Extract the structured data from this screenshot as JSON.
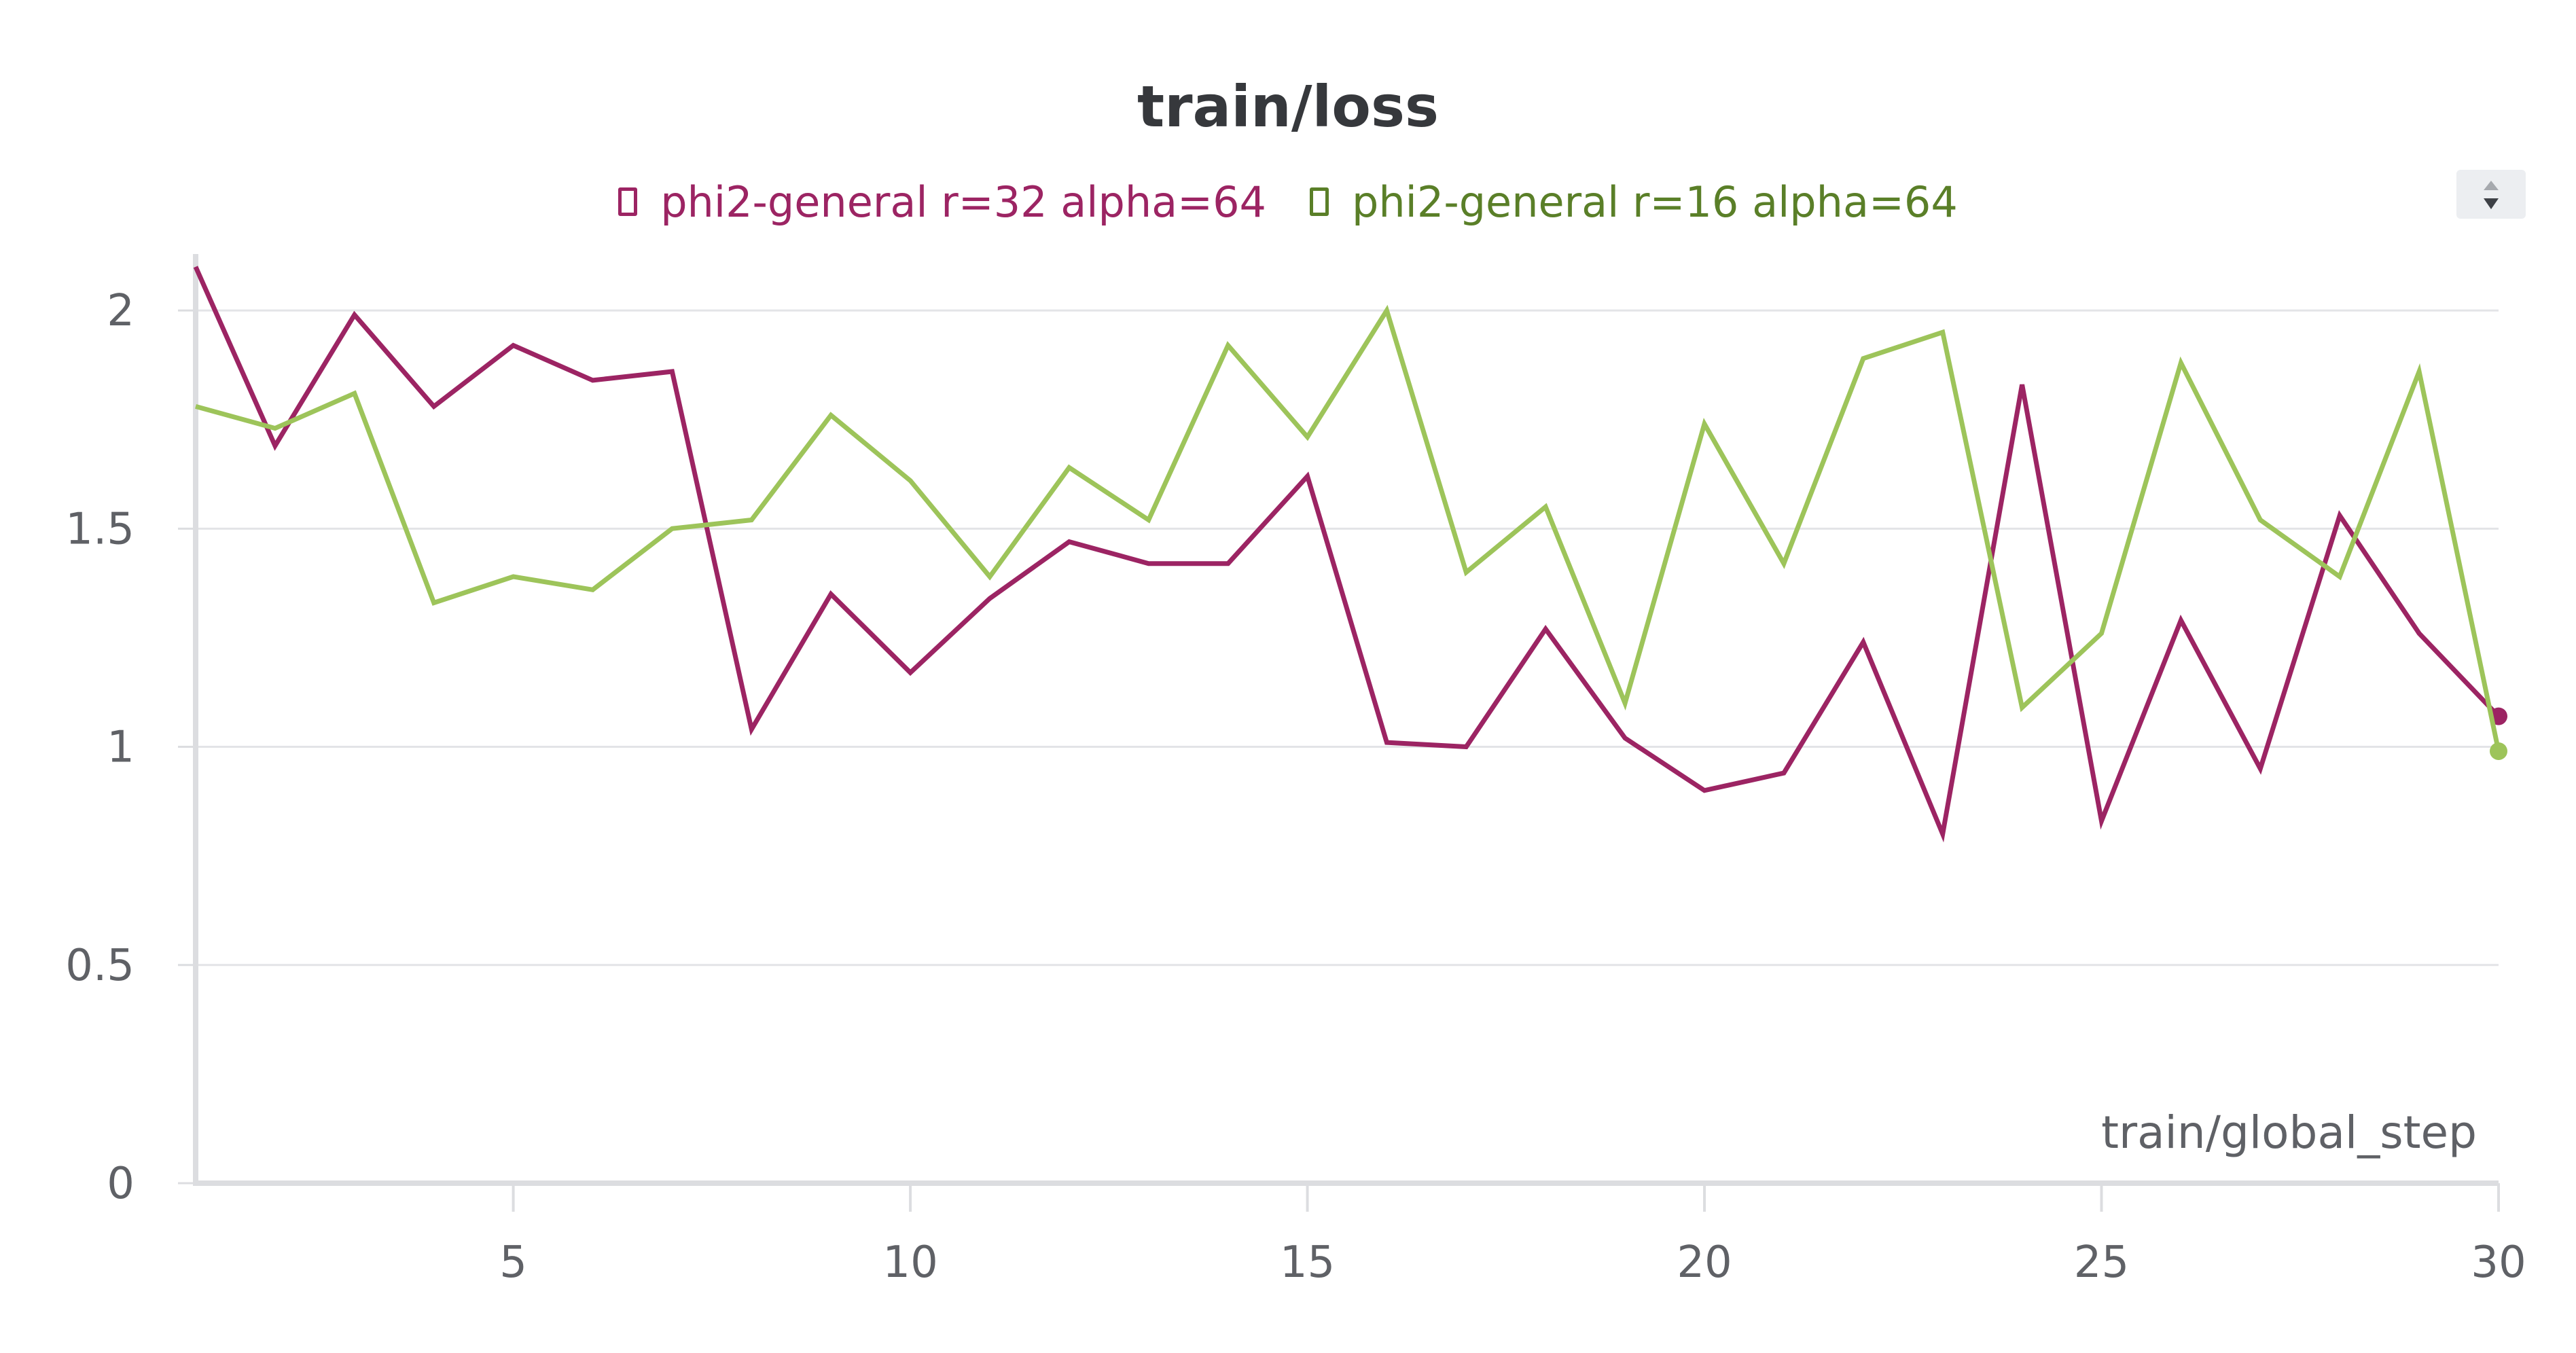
{
  "chart_data": {
    "type": "line",
    "title": "train/loss",
    "xlabel": "train/global_step",
    "ylabel": "",
    "xlim": [
      1,
      30
    ],
    "ylim": [
      0,
      2.12
    ],
    "xticks": [
      5,
      10,
      15,
      20,
      25,
      30
    ],
    "yticks": [
      0,
      0.5,
      1,
      1.5,
      2
    ],
    "ytick_labels": [
      "0",
      "0.5",
      "1",
      "1.5",
      "2"
    ],
    "grid": true,
    "legend_position": "top-center",
    "x": [
      1,
      2,
      3,
      4,
      5,
      6,
      7,
      8,
      9,
      10,
      11,
      12,
      13,
      14,
      15,
      16,
      17,
      18,
      19,
      20,
      21,
      22,
      23,
      24,
      25,
      26,
      27,
      28,
      29,
      30
    ],
    "series": [
      {
        "name": "phi2-general r=32 alpha=64",
        "color": "#9c2463",
        "values": [
          2.1,
          1.69,
          1.99,
          1.78,
          1.92,
          1.84,
          1.86,
          1.04,
          1.35,
          1.17,
          1.34,
          1.47,
          1.42,
          1.42,
          1.62,
          1.01,
          1.0,
          1.27,
          1.02,
          0.9,
          0.94,
          1.24,
          0.8,
          1.83,
          0.83,
          1.29,
          0.95,
          1.53,
          1.26,
          1.07
        ]
      },
      {
        "name": "phi2-general r=16 alpha=64",
        "color": "#9dc45a",
        "legend_text_color": "#5a7f28",
        "values": [
          1.78,
          1.73,
          1.81,
          1.33,
          1.39,
          1.36,
          1.5,
          1.52,
          1.76,
          1.61,
          1.39,
          1.64,
          1.52,
          1.92,
          1.71,
          2.0,
          1.4,
          1.55,
          1.1,
          1.74,
          1.42,
          1.89,
          1.95,
          1.09,
          1.26,
          1.88,
          1.52,
          1.39,
          1.86,
          0.99
        ]
      }
    ]
  }
}
